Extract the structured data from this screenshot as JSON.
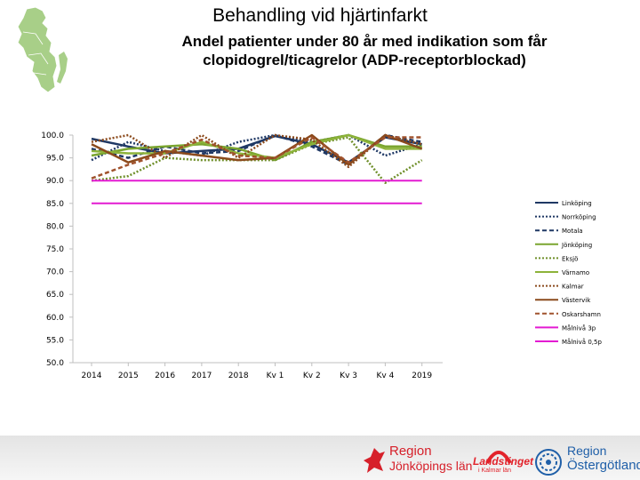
{
  "header": {
    "title": "Behandling vid hjärtinfarkt",
    "subtitle_line1": "Andel patienter under 80 år med indikation som får",
    "subtitle_line2": "clopidogrel/ticagrelor (ADP-receptorblockad)"
  },
  "chart_data": {
    "type": "line",
    "categories": [
      "2014",
      "2015",
      "2016",
      "2017",
      "2018",
      "Kv 1",
      "Kv 2",
      "Kv 3",
      "Kv 4",
      "2019"
    ],
    "y_ticks": [
      "100.0",
      "95.0",
      "90.0",
      "85.0",
      "80.0",
      "75.0",
      "70.0",
      "65.0",
      "60.0",
      "55.0",
      "50.0"
    ],
    "ylim": [
      50,
      100
    ],
    "grid": false,
    "legend_position": "right",
    "series": [
      {
        "name": "Linköping",
        "color": "#1f3864",
        "dash": "solid",
        "values": [
          99.2,
          97.5,
          96.0,
          96.5,
          97.0,
          99.8,
          98.0,
          94.0,
          99.5,
          98.0
        ]
      },
      {
        "name": "Norrköping",
        "color": "#1f3864",
        "dash": "dotted",
        "values": [
          94.5,
          98.5,
          96.5,
          95.5,
          98.5,
          100.0,
          98.5,
          100.0,
          95.5,
          98.0
        ]
      },
      {
        "name": "Motala",
        "color": "#1f3864",
        "dash": "dashed",
        "values": [
          97.0,
          95.0,
          97.5,
          96.0,
          96.5,
          100.0,
          97.5,
          93.5,
          100.0,
          98.5
        ]
      },
      {
        "name": "Jönköping",
        "color": "#7aa52f",
        "dash": "solid",
        "values": [
          95.5,
          97.0,
          97.5,
          98.0,
          97.0,
          94.5,
          98.5,
          100.0,
          97.5,
          97.5
        ]
      },
      {
        "name": "Eksjö",
        "color": "#6f8f2a",
        "dash": "dotted",
        "values": [
          90.0,
          91.0,
          95.0,
          94.5,
          94.5,
          94.5,
          98.0,
          99.5,
          89.5,
          94.5
        ]
      },
      {
        "name": "Värnamo",
        "color": "#8db33a",
        "dash": "solid",
        "values": [
          96.5,
          96.0,
          96.0,
          98.5,
          96.0,
          95.0,
          98.0,
          100.0,
          97.0,
          97.0
        ]
      },
      {
        "name": "Kalmar",
        "color": "#8b4a1c",
        "dash": "dotted",
        "values": [
          98.5,
          100.0,
          95.0,
          100.0,
          95.0,
          100.0,
          99.0,
          93.0,
          100.0,
          98.0
        ]
      },
      {
        "name": "Västervik",
        "color": "#8b4a1c",
        "dash": "solid",
        "values": [
          98.0,
          94.0,
          96.5,
          95.5,
          94.5,
          95.0,
          100.0,
          93.5,
          100.0,
          97.0
        ]
      },
      {
        "name": "Oskarshamn",
        "color": "#a0522d",
        "dash": "dashed",
        "values": [
          90.5,
          93.5,
          96.0,
          99.0,
          95.5,
          95.0,
          99.5,
          94.0,
          99.5,
          99.5
        ]
      },
      {
        "name": "Målnivå 3p",
        "color": "#e31bd2",
        "dash": "solid",
        "values": [
          90.0,
          90.0,
          90.0,
          90.0,
          90.0,
          90.0,
          90.0,
          90.0,
          90.0,
          90.0
        ]
      },
      {
        "name": "Målnivå 0,5p",
        "color": "#e31bd2",
        "dash": "solid",
        "values": [
          85.0,
          85.0,
          85.0,
          85.0,
          85.0,
          85.0,
          85.0,
          85.0,
          85.0,
          85.0
        ]
      }
    ]
  },
  "footer": {
    "logo1_line1": "Region",
    "logo1_line2": "Jönköpings län",
    "logo2_line1": "Landstinget",
    "logo2_line2": "i Kalmar län",
    "logo3_line1": "Region",
    "logo3_line2": "Östergötland"
  }
}
